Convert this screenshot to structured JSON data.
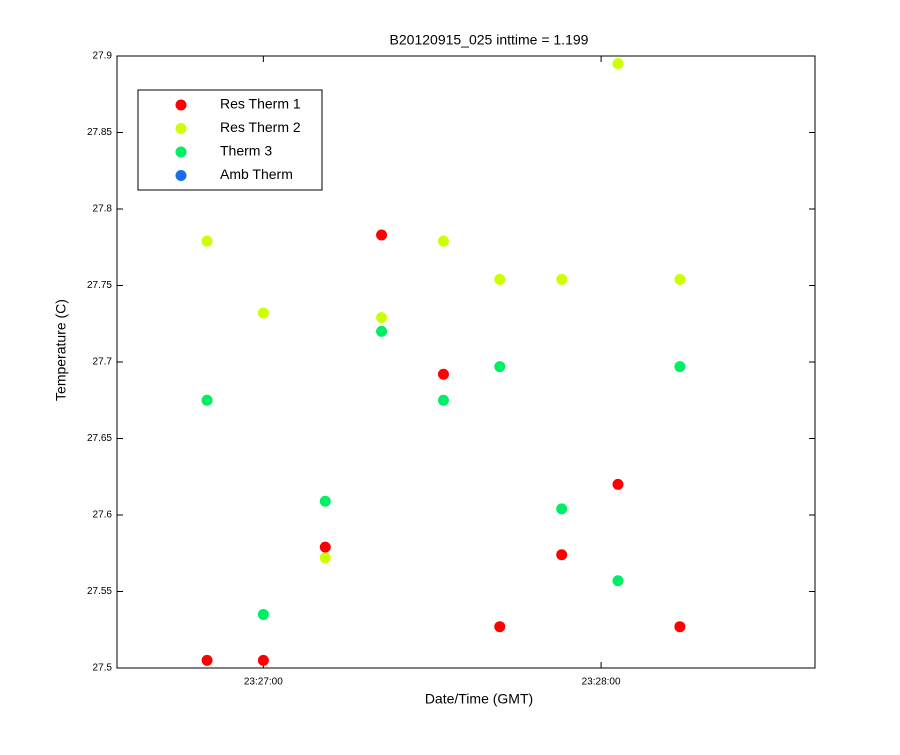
{
  "chart_data": {
    "type": "scatter",
    "title": "B20120915_025 inttime = 1.199",
    "x_label": "Date/Time (GMT)",
    "y_label": "Temperature (C)",
    "x": [
      "23:26:50",
      "23:27:00",
      "23:27:11",
      "23:27:21",
      "23:27:32",
      "23:27:42",
      "23:27:53",
      "23:28:03",
      "23:28:14"
    ],
    "xlim": [
      "23:26:34",
      "23:28:38"
    ],
    "xticks": [
      "23:27:00",
      "23:28:00"
    ],
    "ylim": [
      27.5,
      27.9
    ],
    "yticks": [
      27.5,
      27.55,
      27.6,
      27.65,
      27.7,
      27.75,
      27.8,
      27.85,
      27.9
    ],
    "legend_position": "upper left",
    "series": [
      {
        "name": "Res Therm 1",
        "color": "#ff0000",
        "values": [
          27.505,
          27.505,
          27.579,
          27.783,
          27.692,
          27.527,
          27.574,
          27.62,
          27.527
        ]
      },
      {
        "name": "Res Therm 2",
        "color": "#ccff00",
        "values": [
          27.779,
          27.732,
          27.572,
          27.729,
          27.779,
          27.754,
          27.754,
          27.895,
          27.754
        ]
      },
      {
        "name": "Therm 3",
        "color": "#00ee66",
        "values": [
          27.675,
          27.535,
          27.609,
          27.72,
          27.675,
          27.697,
          27.604,
          27.557,
          27.697
        ]
      },
      {
        "name": "Amb Therm",
        "color": "#1a6ee6",
        "values": [
          null,
          null,
          null,
          null,
          null,
          null,
          null,
          null,
          null
        ]
      }
    ]
  }
}
